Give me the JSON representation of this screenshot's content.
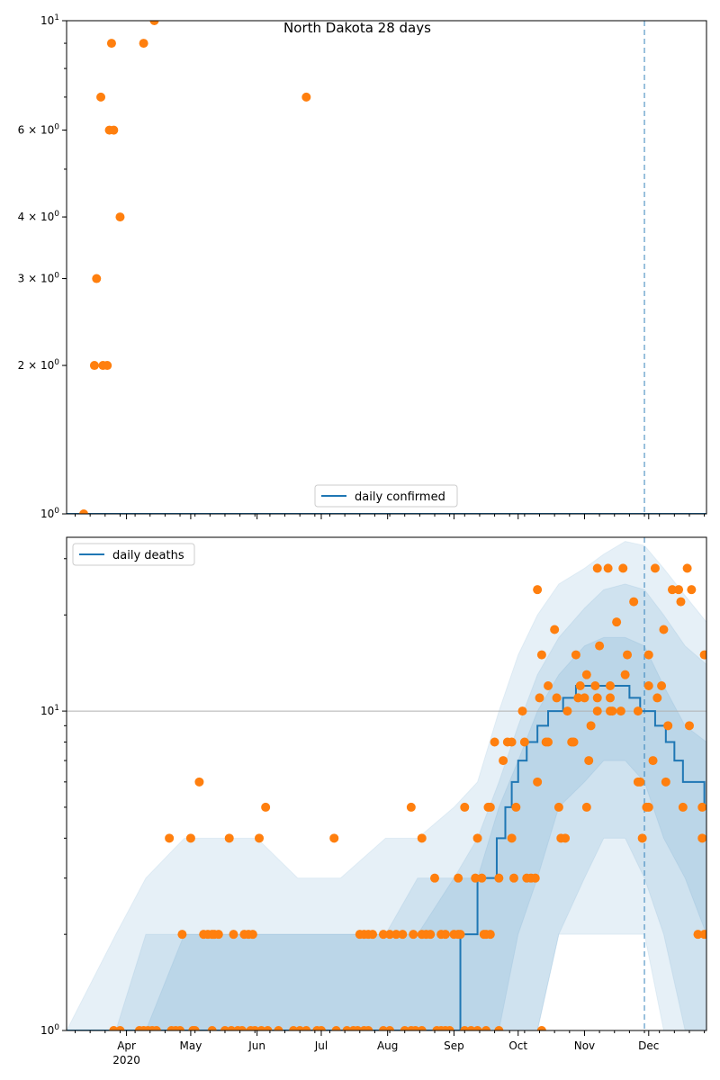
{
  "chart_data": [
    {
      "type": "scatter",
      "title": "North Dakota 28 days",
      "year": 2020,
      "xlim": [
        "03-04",
        "12-28"
      ],
      "ylim": [
        1,
        10
      ],
      "yscale": "log",
      "ytick_labels": [
        {
          "value": 1,
          "base": "10",
          "exp": "0"
        },
        {
          "value": 2,
          "base": "2 × 10",
          "exp": "0"
        },
        {
          "value": 3,
          "base": "3 × 10",
          "exp": "0"
        },
        {
          "value": 4,
          "base": "4 × 10",
          "exp": "0"
        },
        {
          "value": 6,
          "base": "6 × 10",
          "exp": "0"
        },
        {
          "value": 10,
          "base": "10",
          "exp": "1"
        }
      ],
      "legend": {
        "label": "daily confirmed",
        "placement": "lower-center"
      },
      "model_line": [
        [
          "03-04",
          1
        ],
        [
          "12-28",
          1
        ]
      ],
      "observed": [
        [
          "03-12",
          1
        ],
        [
          "03-17",
          2
        ],
        [
          "03-18",
          3
        ],
        [
          "03-20",
          7
        ],
        [
          "03-21",
          2
        ],
        [
          "03-23",
          2
        ],
        [
          "03-24",
          6
        ],
        [
          "03-25",
          9
        ],
        [
          "03-26",
          6
        ],
        [
          "03-29",
          4
        ],
        [
          "04-09",
          9
        ],
        [
          "04-14",
          10
        ],
        [
          "06-24",
          7
        ]
      ],
      "vline": "11-29",
      "colors": {
        "line": "#1f77b4",
        "points": "#ff7f0e"
      }
    },
    {
      "type": "scatter",
      "year": 2020,
      "xlim": [
        "03-04",
        "12-28"
      ],
      "ylim": [
        1,
        35
      ],
      "yscale": "log",
      "grid": "y-major",
      "xtick_labels": [
        {
          "date": "04-01",
          "label": "Apr",
          "sub": "2020"
        },
        {
          "date": "05-01",
          "label": "May"
        },
        {
          "date": "06-01",
          "label": "Jun"
        },
        {
          "date": "07-01",
          "label": "Jul"
        },
        {
          "date": "08-01",
          "label": "Aug"
        },
        {
          "date": "09-01",
          "label": "Sep"
        },
        {
          "date": "10-01",
          "label": "Oct"
        },
        {
          "date": "11-01",
          "label": "Nov"
        },
        {
          "date": "12-01",
          "label": "Dec"
        }
      ],
      "ytick_labels": [
        {
          "value": 1,
          "base": "10",
          "exp": "0"
        },
        {
          "value": 10,
          "base": "10",
          "exp": "1"
        }
      ],
      "legend": {
        "label": "daily deaths",
        "placement": "upper-left"
      },
      "model_line": [
        [
          "03-04",
          1
        ],
        [
          "09-04",
          2
        ],
        [
          "09-12",
          3
        ],
        [
          "09-21",
          4
        ],
        [
          "09-25",
          5
        ],
        [
          "09-28",
          6
        ],
        [
          "10-01",
          7
        ],
        [
          "10-05",
          8
        ],
        [
          "10-10",
          9
        ],
        [
          "10-15",
          10
        ],
        [
          "10-22",
          11
        ],
        [
          "10-28",
          12
        ],
        [
          "11-22",
          11
        ],
        [
          "11-27",
          10
        ],
        [
          "12-04",
          9
        ],
        [
          "12-09",
          8
        ],
        [
          "12-13",
          7
        ],
        [
          "12-17",
          6
        ],
        [
          "12-27",
          5
        ],
        [
          "12-28",
          5
        ]
      ],
      "bands": {
        "dates": [
          "03-04",
          "03-27",
          "04-10",
          "04-28",
          "05-15",
          "06-01",
          "06-20",
          "07-10",
          "07-31",
          "08-15",
          "09-01",
          "09-12",
          "09-22",
          "10-01",
          "10-10",
          "10-20",
          "11-01",
          "11-10",
          "11-20",
          "11-29",
          "12-08",
          "12-18",
          "12-28"
        ],
        "outer": {
          "lo": [
            1,
            1,
            1,
            1,
            1,
            1,
            1,
            1,
            1,
            1,
            1,
            1,
            1,
            1,
            1,
            2,
            2,
            2,
            2,
            2,
            1,
            1,
            1
          ],
          "hi": [
            1,
            2,
            3,
            4,
            4,
            4,
            3,
            3,
            4,
            4,
            5,
            6,
            10,
            15,
            20,
            25,
            28,
            31,
            34,
            33,
            28,
            23,
            19
          ]
        },
        "middle": {
          "lo": [
            1,
            1,
            1,
            1,
            1,
            1,
            1,
            1,
            1,
            1,
            1,
            1,
            1,
            1,
            1,
            2,
            3,
            4,
            4,
            3,
            2,
            1,
            1
          ],
          "hi": [
            1,
            1,
            2,
            2,
            2,
            2,
            2,
            2,
            2,
            3,
            3,
            4,
            6,
            9,
            13,
            17,
            21,
            24,
            25,
            24,
            20,
            16,
            14
          ]
        },
        "inner": {
          "lo": [
            1,
            1,
            1,
            1,
            1,
            1,
            1,
            1,
            1,
            1,
            1,
            1,
            1,
            2,
            3,
            5,
            6,
            7,
            7,
            6,
            4,
            3,
            2
          ],
          "hi": [
            1,
            1,
            1,
            2,
            2,
            2,
            2,
            2,
            2,
            2,
            3,
            3,
            5,
            7,
            10,
            13,
            16,
            17,
            17,
            16,
            12,
            9,
            8
          ]
        }
      },
      "observed": [
        [
          "03-26",
          1
        ],
        [
          "03-29",
          1
        ],
        [
          "04-07",
          1
        ],
        [
          "04-09",
          1
        ],
        [
          "04-11",
          1
        ],
        [
          "04-13",
          1
        ],
        [
          "04-15",
          1
        ],
        [
          "04-22",
          1
        ],
        [
          "04-24",
          1
        ],
        [
          "04-26",
          1
        ],
        [
          "05-02",
          1
        ],
        [
          "05-03",
          1
        ],
        [
          "05-11",
          1
        ],
        [
          "05-17",
          1
        ],
        [
          "05-20",
          1
        ],
        [
          "05-23",
          1
        ],
        [
          "05-25",
          1
        ],
        [
          "05-29",
          1
        ],
        [
          "05-31",
          1
        ],
        [
          "06-03",
          1
        ],
        [
          "06-06",
          1
        ],
        [
          "06-11",
          1
        ],
        [
          "06-18",
          1
        ],
        [
          "06-21",
          1
        ],
        [
          "06-24",
          1
        ],
        [
          "06-29",
          1
        ],
        [
          "07-01",
          1
        ],
        [
          "07-08",
          1
        ],
        [
          "07-13",
          1
        ],
        [
          "07-16",
          1
        ],
        [
          "07-18",
          1
        ],
        [
          "07-21",
          1
        ],
        [
          "07-23",
          1
        ],
        [
          "07-30",
          1
        ],
        [
          "08-02",
          1
        ],
        [
          "08-09",
          1
        ],
        [
          "08-12",
          1
        ],
        [
          "08-14",
          1
        ],
        [
          "08-17",
          1
        ],
        [
          "08-24",
          1
        ],
        [
          "08-26",
          1
        ],
        [
          "08-28",
          1
        ],
        [
          "08-30",
          1
        ],
        [
          "09-06",
          1
        ],
        [
          "09-09",
          1
        ],
        [
          "09-12",
          1
        ],
        [
          "09-16",
          1
        ],
        [
          "09-22",
          1
        ],
        [
          "10-12",
          1
        ],
        [
          "04-27",
          2
        ],
        [
          "05-07",
          2
        ],
        [
          "05-09",
          2
        ],
        [
          "05-11",
          2
        ],
        [
          "05-12",
          2
        ],
        [
          "05-14",
          2
        ],
        [
          "05-21",
          2
        ],
        [
          "05-26",
          2
        ],
        [
          "05-28",
          2
        ],
        [
          "05-30",
          2
        ],
        [
          "07-19",
          2
        ],
        [
          "07-21",
          2
        ],
        [
          "07-23",
          2
        ],
        [
          "07-25",
          2
        ],
        [
          "07-30",
          2
        ],
        [
          "08-02",
          2
        ],
        [
          "08-05",
          2
        ],
        [
          "08-08",
          2
        ],
        [
          "08-13",
          2
        ],
        [
          "08-17",
          2
        ],
        [
          "08-19",
          2
        ],
        [
          "08-21",
          2
        ],
        [
          "08-26",
          2
        ],
        [
          "08-28",
          2
        ],
        [
          "09-01",
          2
        ],
        [
          "09-03",
          2
        ],
        [
          "09-04",
          2
        ],
        [
          "09-15",
          2
        ],
        [
          "09-16",
          2
        ],
        [
          "09-18",
          2
        ],
        [
          "12-24",
          2
        ],
        [
          "12-27",
          2
        ],
        [
          "08-23",
          3
        ],
        [
          "09-03",
          3
        ],
        [
          "09-11",
          3
        ],
        [
          "09-14",
          3
        ],
        [
          "09-22",
          3
        ],
        [
          "09-29",
          3
        ],
        [
          "10-05",
          3
        ],
        [
          "10-07",
          3
        ],
        [
          "10-09",
          3
        ],
        [
          "04-21",
          4
        ],
        [
          "05-01",
          4
        ],
        [
          "05-19",
          4
        ],
        [
          "06-02",
          4
        ],
        [
          "07-07",
          4
        ],
        [
          "08-17",
          4
        ],
        [
          "09-12",
          4
        ],
        [
          "09-28",
          4
        ],
        [
          "10-21",
          4
        ],
        [
          "10-23",
          4
        ],
        [
          "11-28",
          4
        ],
        [
          "12-26",
          4
        ],
        [
          "06-05",
          5
        ],
        [
          "08-12",
          5
        ],
        [
          "09-06",
          5
        ],
        [
          "09-17",
          5
        ],
        [
          "09-18",
          5
        ],
        [
          "09-30",
          5
        ],
        [
          "10-20",
          5
        ],
        [
          "11-02",
          5
        ],
        [
          "11-30",
          5
        ],
        [
          "12-01",
          5
        ],
        [
          "12-17",
          5
        ],
        [
          "12-26",
          5
        ],
        [
          "05-05",
          6
        ],
        [
          "10-10",
          6
        ],
        [
          "11-26",
          6
        ],
        [
          "11-27",
          6
        ],
        [
          "12-09",
          6
        ],
        [
          "09-24",
          7
        ],
        [
          "11-03",
          7
        ],
        [
          "12-03",
          7
        ],
        [
          "09-20",
          8
        ],
        [
          "09-26",
          8
        ],
        [
          "09-28",
          8
        ],
        [
          "10-04",
          8
        ],
        [
          "10-14",
          8
        ],
        [
          "10-15",
          8
        ],
        [
          "10-26",
          8
        ],
        [
          "10-27",
          8
        ],
        [
          "11-04",
          9
        ],
        [
          "12-10",
          9
        ],
        [
          "12-20",
          9
        ],
        [
          "10-03",
          10
        ],
        [
          "10-24",
          10
        ],
        [
          "11-07",
          10
        ],
        [
          "11-13",
          10
        ],
        [
          "11-14",
          10
        ],
        [
          "11-18",
          10
        ],
        [
          "11-26",
          10
        ],
        [
          "10-11",
          11
        ],
        [
          "10-19",
          11
        ],
        [
          "10-29",
          11
        ],
        [
          "11-01",
          11
        ],
        [
          "11-07",
          11
        ],
        [
          "11-13",
          11
        ],
        [
          "12-05",
          11
        ],
        [
          "10-15",
          12
        ],
        [
          "10-30",
          12
        ],
        [
          "11-06",
          12
        ],
        [
          "11-13",
          12
        ],
        [
          "12-01",
          12
        ],
        [
          "12-07",
          12
        ],
        [
          "11-02",
          13
        ],
        [
          "11-20",
          13
        ],
        [
          "10-12",
          15
        ],
        [
          "10-28",
          15
        ],
        [
          "11-21",
          15
        ],
        [
          "12-01",
          15
        ],
        [
          "12-27",
          15
        ],
        [
          "11-08",
          16
        ],
        [
          "10-18",
          18
        ],
        [
          "12-08",
          18
        ],
        [
          "11-16",
          19
        ],
        [
          "11-24",
          22
        ],
        [
          "12-16",
          22
        ],
        [
          "10-10",
          24
        ],
        [
          "12-12",
          24
        ],
        [
          "12-15",
          24
        ],
        [
          "12-21",
          24
        ],
        [
          "11-07",
          28
        ],
        [
          "11-12",
          28
        ],
        [
          "11-19",
          28
        ],
        [
          "12-04",
          28
        ],
        [
          "12-19",
          28
        ]
      ],
      "vline": "11-29",
      "colors": {
        "line": "#1f77b4",
        "band": "#1f77b4",
        "points": "#ff7f0e",
        "grid": "#b0b0b0"
      }
    }
  ]
}
